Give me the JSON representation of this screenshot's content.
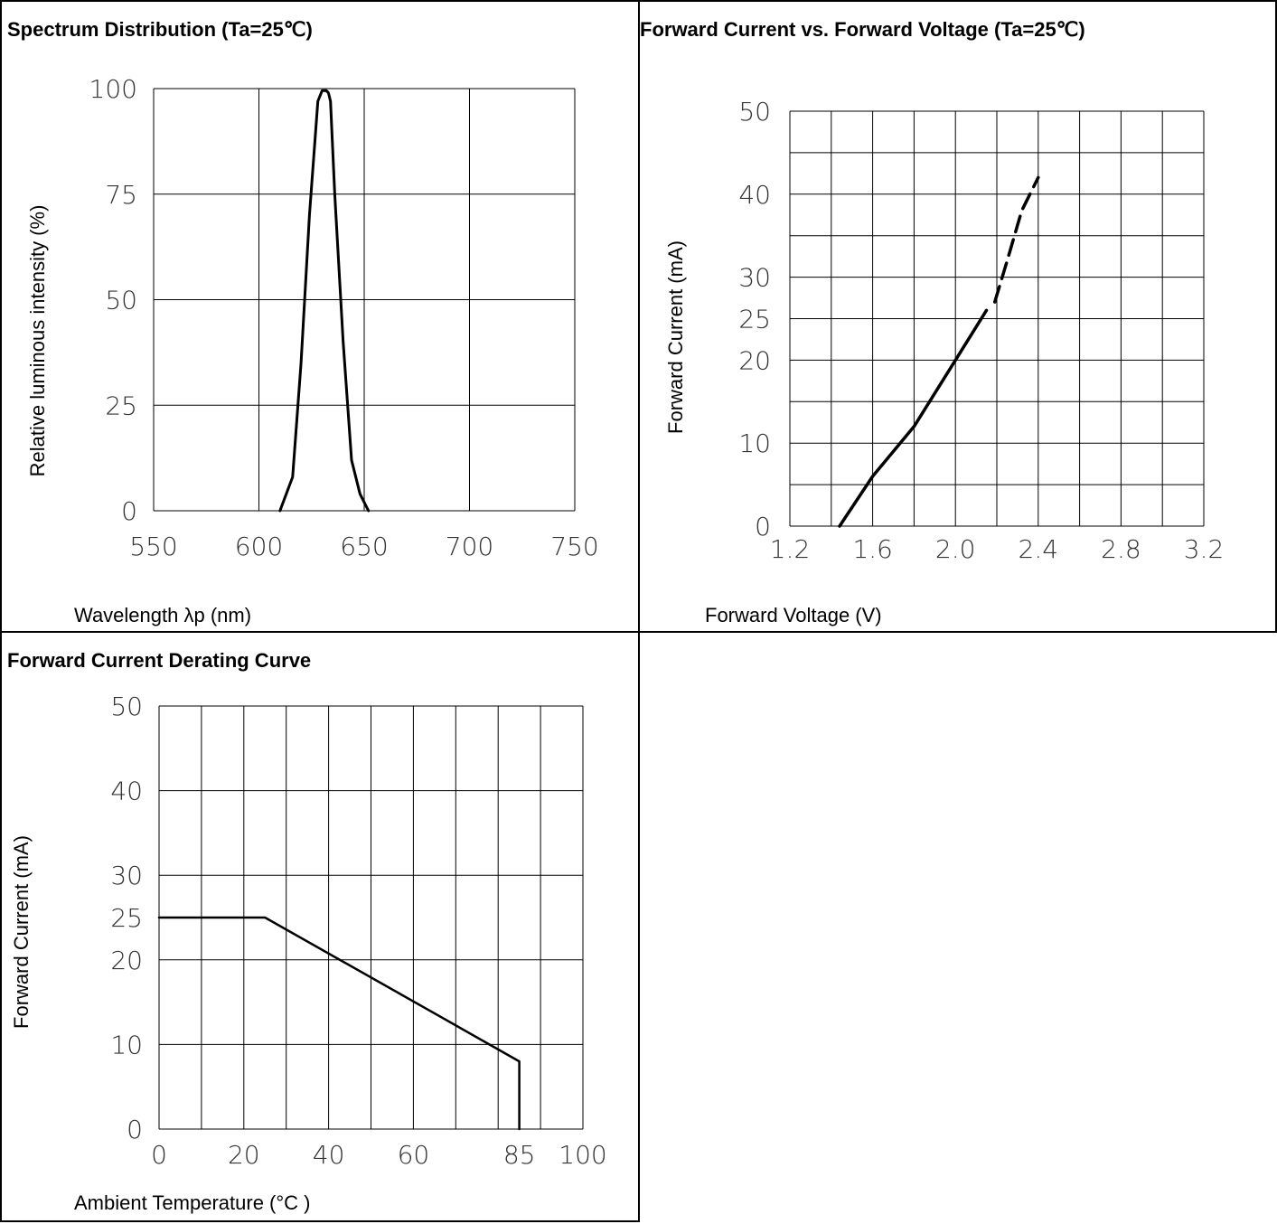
{
  "colors": {
    "line": "#000000",
    "grid": "#000000",
    "background": "#ffffff"
  },
  "chart_data": [
    {
      "type": "line",
      "title": "Spectrum Distribution (Ta=25℃)",
      "xlabel": "Wavelength λp (nm)",
      "ylabel": "Relative luminous intensity (%)",
      "xlim": [
        550,
        750
      ],
      "ylim": [
        0,
        100
      ],
      "xticks": [
        "550",
        "600",
        "650",
        "700",
        "750"
      ],
      "yticks": [
        "0",
        "25",
        "50",
        "75",
        "100"
      ],
      "grid": true,
      "series": [
        {
          "x": [
            610,
            613,
            616,
            620,
            624,
            628,
            630,
            632,
            633,
            634,
            636,
            640,
            644,
            648,
            650,
            652
          ],
          "y": [
            0,
            4,
            8,
            35,
            70,
            97,
            99.5,
            99.5,
            99,
            97,
            75,
            40,
            12,
            4,
            2,
            0
          ]
        }
      ]
    },
    {
      "type": "line",
      "title": "Forward Current vs. Forward Voltage (Ta=25℃)",
      "xlabel": "Forward Voltage (V)",
      "ylabel": "Forward Current (mA)",
      "xlim": [
        1.2,
        3.2
      ],
      "ylim": [
        0,
        50
      ],
      "xticks": [
        "1.2",
        "1.6",
        "2.0",
        "2.4",
        "2.8",
        "3.2"
      ],
      "yticks": [
        "0",
        "10",
        "20",
        "25",
        "30",
        "40",
        "50"
      ],
      "grid": true,
      "series": [
        {
          "style": "solid",
          "x": [
            1.44,
            1.6,
            1.8,
            2.0,
            2.1,
            2.15
          ],
          "y": [
            0,
            6,
            12,
            20,
            24,
            26
          ]
        },
        {
          "style": "dashed",
          "x": [
            2.19,
            2.25,
            2.32,
            2.4
          ],
          "y": [
            27,
            32,
            38,
            42
          ]
        }
      ]
    },
    {
      "type": "line",
      "title": "Forward Current Derating Curve",
      "xlabel": "Ambient Temperature (°C )",
      "ylabel": "Forward Current (mA)",
      "xlim": [
        0,
        100
      ],
      "ylim": [
        0,
        50
      ],
      "xticks": [
        "0",
        "20",
        "40",
        "60",
        "85",
        "100"
      ],
      "yticks": [
        "0",
        "10",
        "20",
        "25",
        "30",
        "40",
        "50"
      ],
      "grid": true,
      "series": [
        {
          "x": [
            0,
            25,
            85,
            85
          ],
          "y": [
            25,
            25,
            8,
            0
          ]
        }
      ]
    }
  ]
}
